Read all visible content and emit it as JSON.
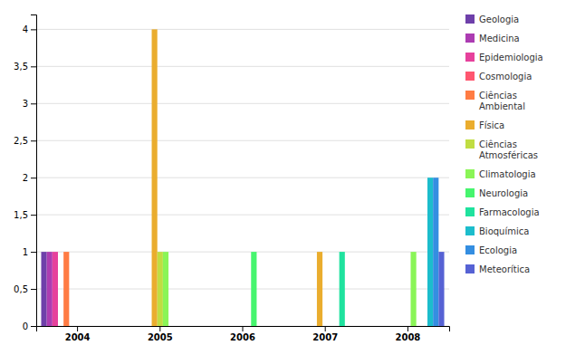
{
  "chart_data": {
    "type": "bar",
    "categories": [
      "2004",
      "2005",
      "2006",
      "2007",
      "2008"
    ],
    "series": [
      {
        "name": "Geologia",
        "values": [
          1,
          0,
          0,
          0,
          0
        ]
      },
      {
        "name": "Medicina",
        "values": [
          1,
          0,
          0,
          0,
          0
        ]
      },
      {
        "name": "Epidemiologia",
        "values": [
          1,
          0,
          0,
          0,
          0
        ]
      },
      {
        "name": "Cosmologia",
        "values": [
          0,
          0,
          0,
          0,
          0
        ]
      },
      {
        "name": "Ciências\nAmbiental",
        "values": [
          1,
          0,
          0,
          0,
          0
        ]
      },
      {
        "name": "Física",
        "values": [
          0,
          4,
          0,
          1,
          0
        ]
      },
      {
        "name": "Ciências\nAtmosféricas",
        "values": [
          0,
          1,
          0,
          0,
          0
        ]
      },
      {
        "name": "Climatologia",
        "values": [
          0,
          1,
          0,
          0,
          1
        ]
      },
      {
        "name": "Neurologia",
        "values": [
          0,
          0,
          1,
          0,
          0
        ]
      },
      {
        "name": "Farmacologia",
        "values": [
          0,
          0,
          0,
          1,
          0
        ]
      },
      {
        "name": "Bioquímica",
        "values": [
          0,
          0,
          0,
          0,
          2
        ]
      },
      {
        "name": "Ecologia",
        "values": [
          0,
          0,
          0,
          0,
          2
        ]
      },
      {
        "name": "Meteorítica",
        "values": [
          0,
          0,
          0,
          0,
          1
        ]
      }
    ],
    "ylim": [
      0,
      4.2
    ],
    "yticks": [
      0,
      {
        "value": 0.5,
        "label": "0,5"
      },
      1,
      {
        "value": 1.5,
        "label": "1,5"
      },
      2,
      {
        "value": 2.5,
        "label": "2,5"
      },
      3,
      {
        "value": 3.5,
        "label": "3,5"
      },
      4
    ],
    "grid": true,
    "legend": "right"
  }
}
